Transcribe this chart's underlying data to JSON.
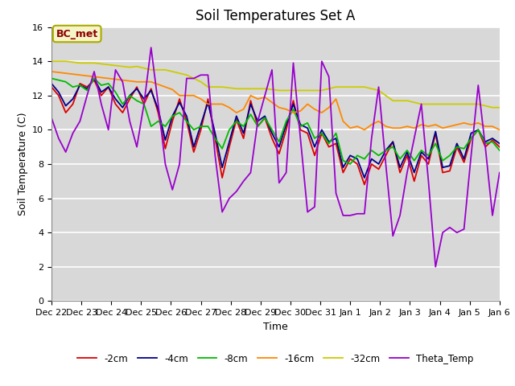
{
  "title": "Soil Temperatures Set A",
  "xlabel": "Time",
  "ylabel": "Soil Temperature (C)",
  "ylim": [
    0,
    16
  ],
  "annotation": "BC_met",
  "fig_facecolor": "#ffffff",
  "plot_bg_color": "#d8d8d8",
  "legend_entries": [
    "-2cm",
    "-4cm",
    "-8cm",
    "-16cm",
    "-32cm",
    "Theta_Temp"
  ],
  "line_colors": [
    "#dd0000",
    "#00008b",
    "#00bb00",
    "#ff8800",
    "#cccc00",
    "#9900cc"
  ],
  "xtick_labels": [
    "Dec 22",
    "Dec 23",
    "Dec 24",
    "Dec 25",
    "Dec 26",
    "Dec 27",
    "Dec 28",
    "Dec 29",
    "Dec 30",
    "Dec 31",
    "Jan 1",
    "Jan 2",
    "Jan 3",
    "Jan 4",
    "Jan 5",
    "Jan 6"
  ],
  "title_fontsize": 12,
  "axis_fontsize": 9,
  "tick_fontsize": 8,
  "data": {
    "cm_neg2": [
      12.5,
      12.0,
      11.0,
      11.5,
      12.7,
      12.5,
      12.9,
      12.0,
      12.5,
      11.5,
      11.0,
      11.8,
      12.5,
      11.5,
      12.4,
      11.0,
      8.9,
      10.5,
      11.8,
      10.5,
      8.7,
      10.0,
      11.8,
      9.5,
      7.2,
      9.0,
      10.6,
      9.5,
      11.7,
      10.2,
      10.7,
      9.5,
      8.6,
      10.0,
      11.7,
      10.0,
      9.8,
      8.5,
      9.8,
      9.0,
      9.2,
      7.5,
      8.3,
      8.0,
      6.8,
      8.0,
      7.7,
      8.5,
      9.3,
      7.5,
      8.5,
      7.0,
      8.5,
      8.0,
      9.8,
      7.5,
      7.6,
      9.0,
      8.1,
      9.5,
      10.0,
      9.0,
      9.4,
      9.0
    ],
    "cm_neg4": [
      12.7,
      12.2,
      11.4,
      11.8,
      12.6,
      12.4,
      13.0,
      12.2,
      12.5,
      11.8,
      11.3,
      12.0,
      12.4,
      11.8,
      12.3,
      11.2,
      9.4,
      10.8,
      11.6,
      10.8,
      9.0,
      10.3,
      11.6,
      9.8,
      7.8,
      9.3,
      10.8,
      9.8,
      11.5,
      10.5,
      10.8,
      9.8,
      9.0,
      10.3,
      11.5,
      10.3,
      10.1,
      9.0,
      10.0,
      9.3,
      9.5,
      7.8,
      8.5,
      8.3,
      7.2,
      8.3,
      8.0,
      8.8,
      9.3,
      7.8,
      8.7,
      7.5,
      8.7,
      8.3,
      9.9,
      7.8,
      7.9,
      9.2,
      8.3,
      9.8,
      10.0,
      9.3,
      9.5,
      9.2
    ],
    "cm_neg8": [
      13.0,
      12.9,
      12.8,
      12.5,
      12.6,
      12.3,
      13.0,
      12.6,
      12.7,
      12.2,
      11.5,
      12.0,
      11.7,
      11.5,
      10.2,
      10.5,
      10.2,
      10.8,
      11.0,
      10.5,
      10.0,
      10.2,
      10.2,
      9.5,
      8.9,
      10.0,
      10.5,
      10.2,
      10.9,
      10.2,
      10.7,
      10.0,
      9.3,
      10.5,
      11.2,
      10.2,
      10.4,
      9.5,
      9.8,
      9.2,
      9.8,
      8.2,
      8.0,
      8.5,
      8.3,
      8.8,
      8.5,
      8.8,
      9.0,
      8.3,
      8.8,
      8.2,
      8.8,
      8.5,
      9.2,
      8.2,
      8.5,
      9.0,
      8.9,
      9.5,
      10.0,
      9.2,
      9.3,
      8.8
    ],
    "cm_neg16": [
      13.4,
      13.35,
      13.3,
      13.25,
      13.2,
      13.15,
      13.1,
      13.05,
      13.0,
      12.95,
      12.9,
      12.85,
      12.8,
      12.8,
      12.8,
      12.65,
      12.5,
      12.35,
      12.0,
      12.0,
      12.0,
      11.8,
      11.5,
      11.5,
      11.5,
      11.3,
      11.0,
      11.2,
      12.0,
      11.8,
      11.9,
      11.6,
      11.3,
      11.2,
      11.0,
      11.1,
      11.5,
      11.2,
      11.0,
      11.3,
      11.8,
      10.5,
      10.1,
      10.2,
      10.0,
      10.3,
      10.5,
      10.2,
      10.1,
      10.1,
      10.2,
      10.1,
      10.3,
      10.2,
      10.3,
      10.1,
      10.2,
      10.3,
      10.4,
      10.3,
      10.4,
      10.2,
      10.2,
      10.0
    ],
    "cm_neg32": [
      14.0,
      14.0,
      14.0,
      13.95,
      13.9,
      13.9,
      13.9,
      13.85,
      13.8,
      13.75,
      13.7,
      13.65,
      13.7,
      13.6,
      13.5,
      13.5,
      13.5,
      13.4,
      13.3,
      13.2,
      13.0,
      12.8,
      12.5,
      12.5,
      12.5,
      12.45,
      12.4,
      12.4,
      12.4,
      12.4,
      12.4,
      12.35,
      12.3,
      12.3,
      12.3,
      12.3,
      12.3,
      12.3,
      12.3,
      12.4,
      12.5,
      12.5,
      12.5,
      12.5,
      12.5,
      12.4,
      12.3,
      12.0,
      11.7,
      11.7,
      11.7,
      11.6,
      11.5,
      11.5,
      11.5,
      11.5,
      11.5,
      11.5,
      11.5,
      11.5,
      11.5,
      11.4,
      11.3,
      11.3
    ],
    "theta": [
      10.7,
      9.5,
      8.7,
      9.8,
      10.5,
      12.0,
      13.4,
      11.5,
      10.0,
      13.5,
      12.8,
      10.5,
      9.0,
      11.5,
      14.8,
      11.5,
      8.0,
      6.5,
      8.0,
      13.0,
      13.0,
      13.2,
      13.2,
      8.5,
      5.2,
      6.0,
      6.4,
      7.0,
      7.5,
      10.5,
      12.0,
      13.5,
      6.9,
      7.5,
      13.9,
      9.5,
      5.2,
      5.5,
      14.0,
      13.1,
      6.3,
      5.0,
      5.0,
      5.1,
      5.1,
      9.5,
      12.5,
      8.0,
      3.8,
      5.0,
      7.5,
      9.5,
      11.5,
      7.0,
      2.0,
      4.0,
      4.3,
      4.0,
      4.2,
      8.5,
      12.6,
      9.0,
      5.0,
      7.5
    ]
  }
}
